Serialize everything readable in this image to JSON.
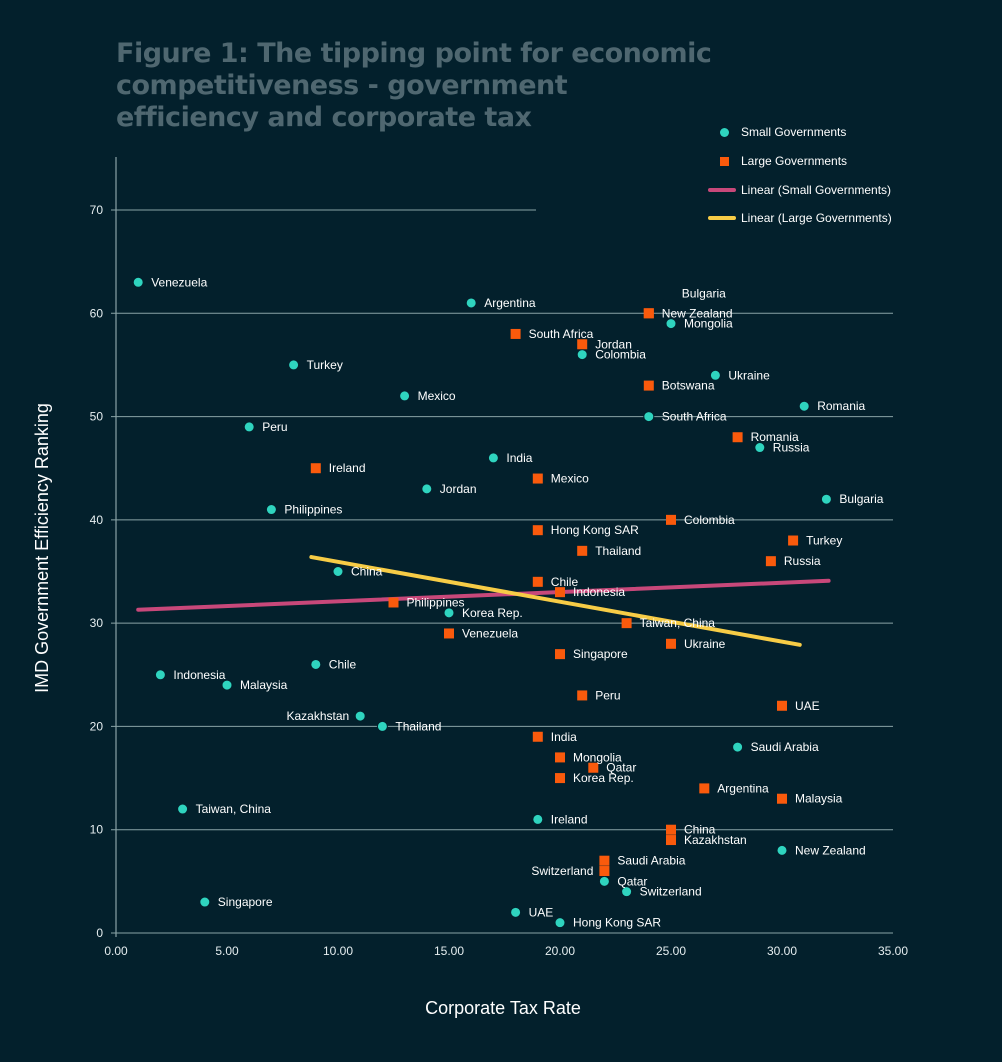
{
  "title_lines": [
    "Figure 1: The tipping point for economic",
    "competitiveness - government",
    "efficiency and corporate tax"
  ],
  "colors": {
    "background": "#03202c",
    "small": "#2fd4bf",
    "large": "#fa5a0c",
    "linear_small": "#c8487a",
    "linear_large": "#f7cc46",
    "grid": "#8aa3a6",
    "title": "#4f6770"
  },
  "legend": [
    {
      "label": "Small Governments",
      "type": "circle",
      "color_key": "small"
    },
    {
      "label": "Large Governments",
      "type": "square",
      "color_key": "large"
    },
    {
      "label": "Linear (Small Governments)",
      "type": "line",
      "color_key": "linear_small"
    },
    {
      "label": "Linear (Large Governments)",
      "type": "line",
      "color_key": "linear_large"
    }
  ],
  "chart_data": {
    "type": "scatter",
    "title": "Figure 1: The tipping point for economic competitiveness - government efficiency and corporate tax",
    "xlabel": "Corporate Tax Rate",
    "ylabel": "IMD Government Efficiency Ranking",
    "xlim": [
      0,
      35
    ],
    "ylim": [
      0,
      70
    ],
    "x_ticks": [
      "0.00",
      "5.00",
      "10.00",
      "15.00",
      "20.00",
      "25.00",
      "30.00",
      "35.00"
    ],
    "y_ticks": [
      "0",
      "10",
      "20",
      "30",
      "40",
      "50",
      "60",
      "70"
    ],
    "grid": "horizontal",
    "legend_position": "top-right",
    "series": [
      {
        "name": "Small Governments",
        "marker": "circle",
        "points": [
          {
            "label": "Venezuela",
            "x": 1,
            "y": 63
          },
          {
            "label": "Argentina",
            "x": 16,
            "y": 61
          },
          {
            "label": "Turkey",
            "x": 8,
            "y": 55
          },
          {
            "label": "Mexico",
            "x": 13,
            "y": 52
          },
          {
            "label": "Peru",
            "x": 6,
            "y": 49
          },
          {
            "label": "India",
            "x": 17,
            "y": 46
          },
          {
            "label": "Jordan",
            "x": 14,
            "y": 43
          },
          {
            "label": "Philippines",
            "x": 7,
            "y": 41
          },
          {
            "label": "China",
            "x": 10,
            "y": 35
          },
          {
            "label": "Korea Rep.",
            "x": 15,
            "y": 31
          },
          {
            "label": "Chile",
            "x": 9,
            "y": 26
          },
          {
            "label": "Indonesia",
            "x": 2,
            "y": 25
          },
          {
            "label": "Malaysia",
            "x": 5,
            "y": 24
          },
          {
            "label": "Kazakhstan",
            "x": 11,
            "y": 21,
            "label_side": "left"
          },
          {
            "label": "Thailand",
            "x": 12,
            "y": 20
          },
          {
            "label": "Taiwan, China",
            "x": 3,
            "y": 12
          },
          {
            "label": "Singapore",
            "x": 4,
            "y": 3
          },
          {
            "label": "Ireland",
            "x": 19,
            "y": 11
          },
          {
            "label": "UAE",
            "x": 18,
            "y": 2
          },
          {
            "label": "Hong Kong SAR",
            "x": 20,
            "y": 1
          },
          {
            "label": "Qatar",
            "x": 22,
            "y": 5
          },
          {
            "label": "Switzerland",
            "x": 23,
            "y": 4
          },
          {
            "label": "New Zealand",
            "x": 30,
            "y": 8
          },
          {
            "label": "Saudi Arabia",
            "x": 28,
            "y": 18
          },
          {
            "label": "Colombia",
            "x": 21,
            "y": 56
          },
          {
            "label": "Mongolia",
            "x": 25,
            "y": 59
          },
          {
            "label": "Ukraine",
            "x": 27,
            "y": 54
          },
          {
            "label": "South Africa",
            "x": 24,
            "y": 50
          },
          {
            "label": "Romania",
            "x": 31,
            "y": 51
          },
          {
            "label": "Russia",
            "x": 29,
            "y": 47
          },
          {
            "label": "Bulgaria",
            "x": 32,
            "y": 42
          }
        ]
      },
      {
        "name": "Large Governments",
        "marker": "square",
        "points": [
          {
            "label": "Bulgaria",
            "x": 24,
            "y": 60,
            "label_side": "above"
          },
          {
            "label": "New Zealand",
            "x": 24,
            "y": 60
          },
          {
            "label": "South Africa",
            "x": 18,
            "y": 58
          },
          {
            "label": "Jordan",
            "x": 21,
            "y": 57
          },
          {
            "label": "Botswana",
            "x": 24,
            "y": 53
          },
          {
            "label": "Romania",
            "x": 28,
            "y": 48
          },
          {
            "label": "Ireland",
            "x": 9,
            "y": 45
          },
          {
            "label": "Mexico",
            "x": 19,
            "y": 44
          },
          {
            "label": "Colombia",
            "x": 25,
            "y": 40
          },
          {
            "label": "Hong Kong SAR",
            "x": 19,
            "y": 39
          },
          {
            "label": "Turkey",
            "x": 30.5,
            "y": 38
          },
          {
            "label": "Thailand",
            "x": 21,
            "y": 37
          },
          {
            "label": "Russia",
            "x": 29.5,
            "y": 36
          },
          {
            "label": "Chile",
            "x": 19,
            "y": 34
          },
          {
            "label": "Indonesia",
            "x": 20,
            "y": 33
          },
          {
            "label": "Philippines",
            "x": 12.5,
            "y": 32
          },
          {
            "label": "Taiwan, China",
            "x": 23,
            "y": 30
          },
          {
            "label": "Venezuela",
            "x": 15,
            "y": 29
          },
          {
            "label": "Ukraine",
            "x": 25,
            "y": 28
          },
          {
            "label": "Singapore",
            "x": 20,
            "y": 27
          },
          {
            "label": "Peru",
            "x": 21,
            "y": 23
          },
          {
            "label": "UAE",
            "x": 30,
            "y": 22
          },
          {
            "label": "India",
            "x": 19,
            "y": 19
          },
          {
            "label": "Mongolia",
            "x": 20,
            "y": 17
          },
          {
            "label": "Qatar",
            "x": 21.5,
            "y": 16
          },
          {
            "label": "Korea Rep.",
            "x": 20,
            "y": 15
          },
          {
            "label": "Argentina",
            "x": 26.5,
            "y": 14
          },
          {
            "label": "Malaysia",
            "x": 30,
            "y": 13
          },
          {
            "label": "China",
            "x": 25,
            "y": 10
          },
          {
            "label": "Kazakhstan",
            "x": 25,
            "y": 9
          },
          {
            "label": "Saudi Arabia",
            "x": 22,
            "y": 7
          },
          {
            "label": "Switzerland",
            "x": 22,
            "y": 6,
            "label_side": "left"
          }
        ]
      }
    ],
    "trendlines": [
      {
        "name": "Linear (Small Governments)",
        "color_key": "linear_small",
        "x1": 1,
        "y1": 31.3,
        "x2": 32.1,
        "y2": 34.1
      },
      {
        "name": "Linear (Large Governments)",
        "color_key": "linear_large",
        "x1": 8.8,
        "y1": 36.4,
        "x2": 30.8,
        "y2": 27.9
      }
    ]
  }
}
